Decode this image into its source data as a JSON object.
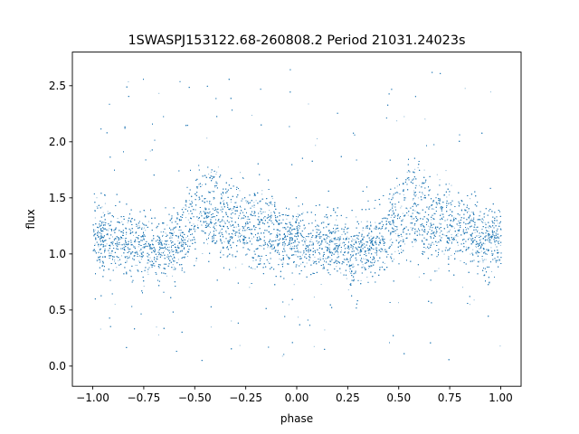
{
  "chart_data": {
    "type": "scatter",
    "title": "1SWASPJ153122.68-260808.2 Period 21031.24023s",
    "xlabel": "phase",
    "ylabel": "flux",
    "xlim": [
      -1.1,
      1.1
    ],
    "ylim": [
      -0.18,
      2.8
    ],
    "x_ticks": [
      -1.0,
      -0.75,
      -0.5,
      -0.25,
      0.0,
      0.25,
      0.5,
      0.75,
      1.0
    ],
    "x_tick_labels": [
      "−1.00",
      "−0.75",
      "−0.50",
      "−0.25",
      "0.00",
      "0.25",
      "0.50",
      "0.75",
      "1.00"
    ],
    "y_ticks": [
      0.0,
      0.5,
      1.0,
      1.5,
      2.0,
      2.5
    ],
    "y_tick_labels": [
      "0.0",
      "0.5",
      "1.0",
      "1.5",
      "2.0",
      "2.5"
    ],
    "grid": false,
    "legend": "none",
    "point_color": "#1f77b4",
    "series": [
      {
        "phase": [
          -1.0,
          -0.9,
          -0.8,
          -0.7,
          -0.6,
          -0.55,
          -0.5,
          -0.45,
          -0.4,
          -0.35,
          -0.3,
          -0.2,
          -0.1,
          0.0,
          0.1,
          0.2,
          0.3,
          0.4,
          0.45,
          0.5,
          0.55,
          0.6,
          0.65,
          0.7,
          0.8,
          0.9,
          1.0
        ],
        "flux_main": [
          1.15,
          1.12,
          1.1,
          1.05,
          1.1,
          1.15,
          1.2,
          1.3,
          1.25,
          1.2,
          1.18,
          1.15,
          1.12,
          1.1,
          1.1,
          1.08,
          1.05,
          1.1,
          1.15,
          1.2,
          1.3,
          1.25,
          1.2,
          1.18,
          1.15,
          1.12,
          1.15
        ],
        "flux_upper_branch": [
          null,
          null,
          null,
          null,
          null,
          1.4,
          1.55,
          1.65,
          1.62,
          1.5,
          1.45,
          1.4,
          1.3,
          null,
          null,
          null,
          null,
          null,
          1.4,
          1.55,
          1.65,
          1.62,
          1.5,
          1.45,
          1.4,
          1.3,
          null
        ]
      }
    ]
  }
}
